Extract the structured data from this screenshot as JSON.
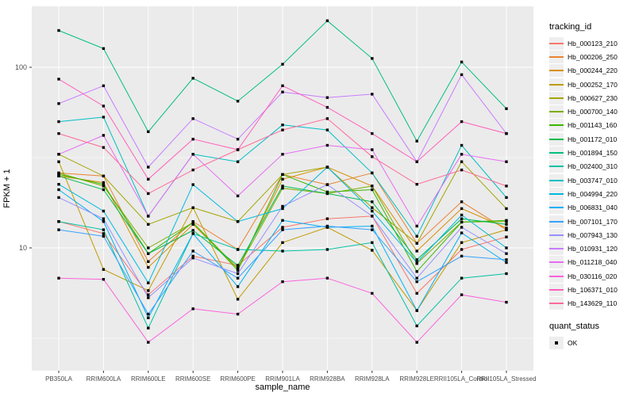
{
  "chart_data": {
    "type": "line",
    "title": "",
    "xlabel": "sample_name",
    "ylabel": "FPKM + 1",
    "yscale": "log10",
    "ylim": [
      2.1,
      220
    ],
    "y_major_ticks": [
      10,
      100
    ],
    "y_minor_gridlines": [
      3.162,
      31.62
    ],
    "grid": true,
    "panel_background": "#EBEBEB",
    "gridline_color": "#FFFFFF",
    "point_shape": "filled-square",
    "point_color": "#000000",
    "legend_position": "right",
    "legend_title": "tracking_id",
    "quant_legend_title": "quant_status",
    "quant_legend_value": "OK",
    "categories": [
      "PB350LA",
      "RRIM600LA",
      "RRIM600LE",
      "RRIM600SE",
      "RRIM600PE",
      "RRIM901LA",
      "RRIM928BA",
      "RRIM928LA",
      "RRIM928LE",
      "RRII105LA_Control",
      "RRII105LA_Stressed"
    ],
    "series": [
      {
        "name": "Hb_000123_210",
        "color": "#F8766D",
        "values": [
          14,
          12,
          5.5,
          9,
          8,
          13,
          14.5,
          15,
          5.6,
          9.8,
          11.5
        ]
      },
      {
        "name": "Hb_000206_250",
        "color": "#EA8331",
        "values": [
          26,
          25,
          8.4,
          14,
          9.8,
          25.5,
          22.4,
          26,
          10.6,
          18,
          12.6
        ]
      },
      {
        "name": "Hb_000244_220",
        "color": "#D89000",
        "values": [
          25,
          23,
          7.8,
          13.5,
          7.7,
          24,
          28,
          22,
          9.6,
          16.5,
          12.9
        ]
      },
      {
        "name": "Hb_000252_170",
        "color": "#C09B00",
        "values": [
          30,
          7.6,
          5.8,
          16.7,
          5.2,
          10.7,
          13,
          9.7,
          4.5,
          10.7,
          12.6
        ]
      },
      {
        "name": "Hb_000627_230",
        "color": "#A3A500",
        "values": [
          33,
          25,
          13.5,
          16.7,
          14,
          25.5,
          28,
          16.7,
          10.6,
          30,
          16.5
        ]
      },
      {
        "name": "Hb_000700_140",
        "color": "#7CAE00",
        "values": [
          26,
          22,
          10,
          13.8,
          7.7,
          21.4,
          20,
          22,
          8.2,
          13.9,
          14
        ]
      },
      {
        "name": "Hb_001143_160",
        "color": "#39B600",
        "values": [
          25.5,
          22.5,
          9.3,
          13.8,
          7.5,
          25.5,
          20.4,
          21,
          7.4,
          13.9,
          14.2
        ]
      },
      {
        "name": "Hb_001172_010",
        "color": "#00BB4E",
        "values": [
          25,
          21,
          9.3,
          12.5,
          8,
          22,
          20,
          18,
          8.6,
          14.5,
          13.5
        ]
      },
      {
        "name": "Hb_001894_150",
        "color": "#00BF7D",
        "values": [
          160,
          127,
          44,
          87,
          65,
          104,
          181,
          112,
          39,
          107,
          59
        ]
      },
      {
        "name": "Hb_002400_310",
        "color": "#00C1A3",
        "values": [
          14,
          12.6,
          3.6,
          12,
          9.8,
          9.6,
          9.8,
          10.7,
          3.7,
          6.8,
          7.2
        ]
      },
      {
        "name": "Hb_003747_010",
        "color": "#00BFC4",
        "values": [
          50,
          53,
          15,
          33,
          30,
          48,
          45,
          26,
          11.6,
          37,
          19
        ]
      },
      {
        "name": "Hb_004994_220",
        "color": "#00BAE0",
        "values": [
          22.5,
          16,
          6.4,
          22.4,
          14,
          16.5,
          28,
          16,
          8.3,
          15.2,
          10
        ]
      },
      {
        "name": "Hb_006831_040",
        "color": "#00B0F6",
        "values": [
          21,
          14,
          4.1,
          12,
          6.1,
          14.2,
          13,
          13.2,
          4.5,
          12.1,
          8.3
        ]
      },
      {
        "name": "Hb_007101_170",
        "color": "#35A2FF",
        "values": [
          12.6,
          11.6,
          4.3,
          9.6,
          6.8,
          12.6,
          13.2,
          12.6,
          6.5,
          9,
          8.6
        ]
      },
      {
        "name": "Hb_007943_130",
        "color": "#9590FF",
        "values": [
          19,
          14.5,
          5.3,
          8.8,
          7.2,
          17,
          22.4,
          15,
          6.8,
          13,
          9.3
        ]
      },
      {
        "name": "Hb_010931_120",
        "color": "#C77CFF",
        "values": [
          63,
          79,
          28,
          52,
          40,
          73,
          68,
          71,
          30,
          91,
          43
        ]
      },
      {
        "name": "Hb_011218_040",
        "color": "#E76BF3",
        "values": [
          33,
          42,
          15,
          33,
          19.4,
          33,
          37,
          35,
          13.2,
          33,
          30
        ]
      },
      {
        "name": "Hb_030116_020",
        "color": "#FA62DB",
        "values": [
          6.8,
          6.7,
          3.0,
          4.6,
          4.3,
          6.5,
          6.8,
          5.6,
          3.0,
          5.5,
          5.0
        ]
      },
      {
        "name": "Hb_106371_010",
        "color": "#FF62BC",
        "values": [
          86,
          61,
          24,
          40,
          35,
          79,
          60,
          43,
          30,
          50,
          43
        ]
      },
      {
        "name": "Hb_143629_110",
        "color": "#FF6A98",
        "values": [
          43,
          36,
          20,
          27,
          35,
          45,
          52,
          32,
          22.5,
          27,
          22
        ]
      }
    ]
  },
  "axes": {
    "y_title": "FPKM + 1",
    "x_title": "sample_name",
    "y_tick_labels": [
      "100",
      "10"
    ]
  },
  "legend": {
    "title": "tracking_id",
    "quant_title": "quant_status",
    "quant_value": "OK"
  }
}
